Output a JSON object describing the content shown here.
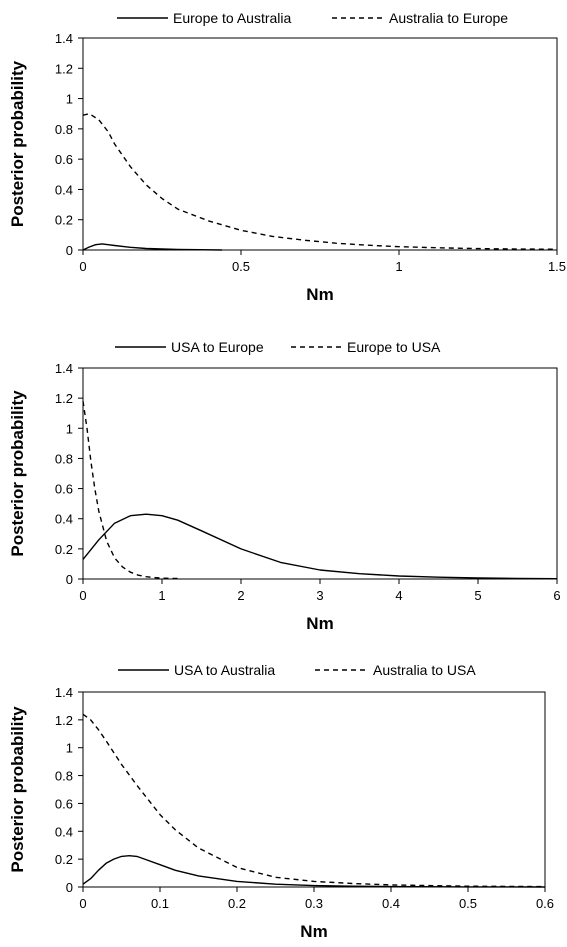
{
  "chart_data": [
    {
      "type": "line",
      "xlabel": "Nm",
      "ylabel": "Posterior probability",
      "xlim": [
        0,
        1.5
      ],
      "ylim": [
        0,
        1.4
      ],
      "xticks": [
        0,
        0.5,
        1,
        1.5
      ],
      "xtick_labels": [
        "0",
        "0.5",
        "1",
        "1.5"
      ],
      "yticks": [
        0,
        0.2,
        0.4,
        0.6,
        0.8,
        1,
        1.2,
        1.4
      ],
      "ytick_labels": [
        "0",
        "0.2",
        "0.4",
        "0.6",
        "0.8",
        "1",
        "1.2",
        "1.4"
      ],
      "grid": false,
      "legend_position": "top",
      "series": [
        {
          "name": "Europe to Australia",
          "style": "solid",
          "x": [
            0,
            0.02,
            0.04,
            0.06,
            0.08,
            0.1,
            0.15,
            0.2,
            0.3,
            0.44
          ],
          "y": [
            0,
            0.02,
            0.035,
            0.04,
            0.035,
            0.03,
            0.018,
            0.01,
            0.004,
            0.0
          ]
        },
        {
          "name": "Australia to Europe",
          "style": "dashed",
          "x": [
            0,
            0.02,
            0.05,
            0.08,
            0.1,
            0.15,
            0.2,
            0.25,
            0.3,
            0.4,
            0.5,
            0.6,
            0.7,
            0.8,
            0.9,
            1.0,
            1.1,
            1.2,
            1.3,
            1.4,
            1.5
          ],
          "y": [
            0.89,
            0.9,
            0.86,
            0.78,
            0.7,
            0.55,
            0.43,
            0.34,
            0.27,
            0.19,
            0.13,
            0.09,
            0.065,
            0.045,
            0.032,
            0.022,
            0.016,
            0.011,
            0.008,
            0.006,
            0.005
          ]
        }
      ]
    },
    {
      "type": "line",
      "xlabel": "Nm",
      "ylabel": "Posterior probability",
      "xlim": [
        0,
        6
      ],
      "ylim": [
        0,
        1.4
      ],
      "xticks": [
        0,
        1,
        2,
        3,
        4,
        5,
        6
      ],
      "xtick_labels": [
        "0",
        "1",
        "2",
        "3",
        "4",
        "5",
        "6"
      ],
      "yticks": [
        0,
        0.2,
        0.4,
        0.6,
        0.8,
        1,
        1.2,
        1.4
      ],
      "ytick_labels": [
        "0",
        "0.2",
        "0.4",
        "0.6",
        "0.8",
        "1",
        "1.2",
        "1.4"
      ],
      "grid": false,
      "legend_position": "top",
      "series": [
        {
          "name": "USA to Europe",
          "style": "solid",
          "x": [
            0,
            0.2,
            0.4,
            0.6,
            0.8,
            1.0,
            1.2,
            1.5,
            2.0,
            2.5,
            3.0,
            3.5,
            4.0,
            4.5,
            5.0,
            5.5,
            6.0
          ],
          "y": [
            0.13,
            0.26,
            0.37,
            0.42,
            0.43,
            0.42,
            0.39,
            0.32,
            0.2,
            0.11,
            0.06,
            0.035,
            0.02,
            0.012,
            0.007,
            0.004,
            0.002
          ]
        },
        {
          "name": "Europe to USA",
          "style": "dashed",
          "x": [
            0,
            0.05,
            0.1,
            0.15,
            0.2,
            0.3,
            0.4,
            0.5,
            0.6,
            0.7,
            0.8,
            0.9,
            1.0,
            1.1,
            1.2
          ],
          "y": [
            1.18,
            1.0,
            0.78,
            0.6,
            0.45,
            0.25,
            0.14,
            0.08,
            0.045,
            0.025,
            0.015,
            0.01,
            0.006,
            0.004,
            0.003
          ]
        }
      ]
    },
    {
      "type": "line",
      "xlabel": "Nm",
      "ylabel": "Posterior probability",
      "xlim": [
        0,
        0.6
      ],
      "ylim": [
        0,
        1.4
      ],
      "xticks": [
        0,
        0.1,
        0.2,
        0.3,
        0.4,
        0.5,
        0.6
      ],
      "xtick_labels": [
        "0",
        "0.1",
        "0.2",
        "0.3",
        "0.4",
        "0.5",
        "0.6"
      ],
      "yticks": [
        0,
        0.2,
        0.4,
        0.6,
        0.8,
        1,
        1.2,
        1.4
      ],
      "ytick_labels": [
        "0",
        "0.2",
        "0.4",
        "0.6",
        "0.8",
        "1",
        "1.2",
        "1.4"
      ],
      "grid": false,
      "legend_position": "top",
      "series": [
        {
          "name": "USA to Australia",
          "style": "solid",
          "x": [
            0,
            0.01,
            0.02,
            0.03,
            0.04,
            0.05,
            0.06,
            0.07,
            0.08,
            0.1,
            0.12,
            0.15,
            0.2,
            0.25,
            0.3,
            0.35,
            0.4,
            0.5,
            0.6
          ],
          "y": [
            0.02,
            0.06,
            0.12,
            0.17,
            0.2,
            0.22,
            0.225,
            0.22,
            0.2,
            0.16,
            0.12,
            0.08,
            0.04,
            0.02,
            0.01,
            0.006,
            0.003,
            0.001,
            0.0
          ]
        },
        {
          "name": "Australia to USA",
          "style": "dashed",
          "x": [
            0,
            0.01,
            0.02,
            0.03,
            0.05,
            0.07,
            0.1,
            0.12,
            0.15,
            0.2,
            0.25,
            0.3,
            0.35,
            0.4,
            0.45,
            0.5,
            0.55,
            0.6
          ],
          "y": [
            1.24,
            1.2,
            1.13,
            1.05,
            0.88,
            0.73,
            0.52,
            0.41,
            0.28,
            0.14,
            0.07,
            0.04,
            0.025,
            0.015,
            0.01,
            0.006,
            0.004,
            0.003
          ]
        }
      ]
    }
  ]
}
